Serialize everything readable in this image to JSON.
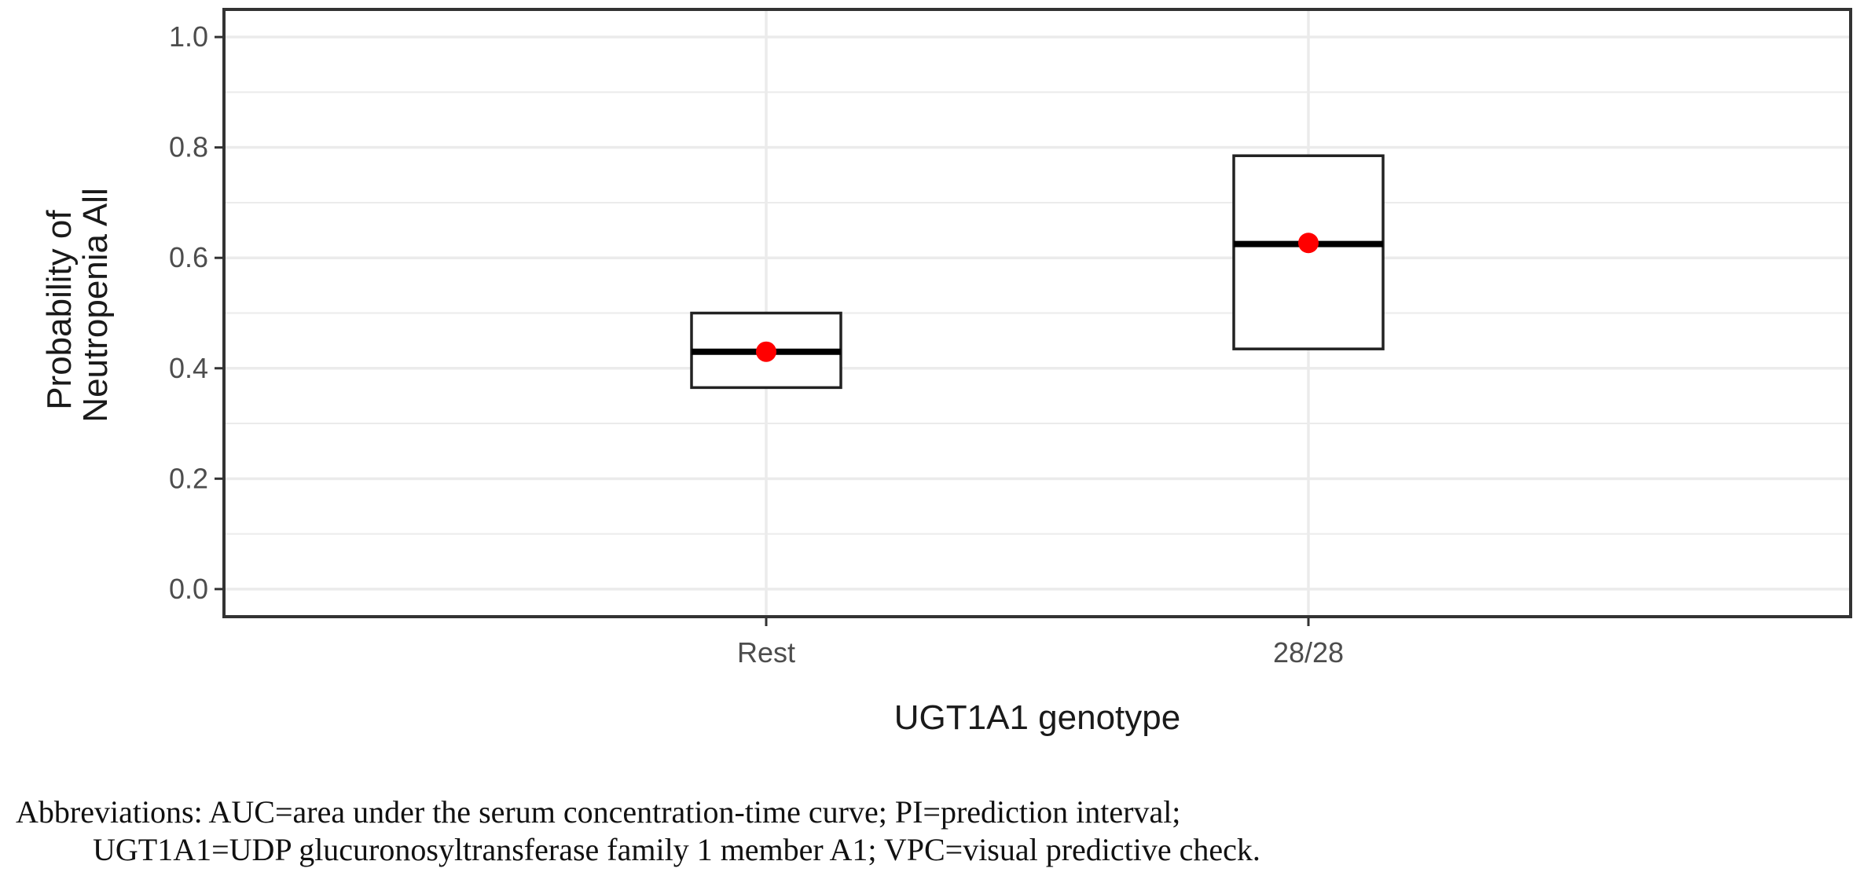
{
  "chart_data": {
    "type": "box",
    "xlabel": "UGT1A1 genotype",
    "ylabel_lines": [
      "Probability of",
      "Neutropenia All"
    ],
    "ylim": [
      -0.05,
      1.05
    ],
    "yticks": [
      "0.0",
      "0.2",
      "0.4",
      "0.6",
      "0.8",
      "1.0"
    ],
    "categories": [
      "Rest",
      "28/28"
    ],
    "boxes": [
      {
        "category": "Rest",
        "lower": 0.365,
        "median": 0.43,
        "upper": 0.5
      },
      {
        "category": "28/28",
        "lower": 0.435,
        "median": 0.625,
        "upper": 0.785
      }
    ],
    "observed": [
      {
        "category": "Rest",
        "value": 0.43
      },
      {
        "category": "28/28",
        "value": 0.627
      }
    ],
    "grid": true,
    "colors": {
      "box": "#222222",
      "median": "#000000",
      "observed": "#ff0000",
      "grid": "#ebebeb",
      "panel_border": "#333333"
    }
  },
  "footnote": {
    "line1": "Abbreviations: AUC=area under the serum concentration-time curve; PI=prediction interval;",
    "line2": "UGT1A1=UDP glucuronosyltransferase family 1 member A1; VPC=visual predictive check."
  }
}
